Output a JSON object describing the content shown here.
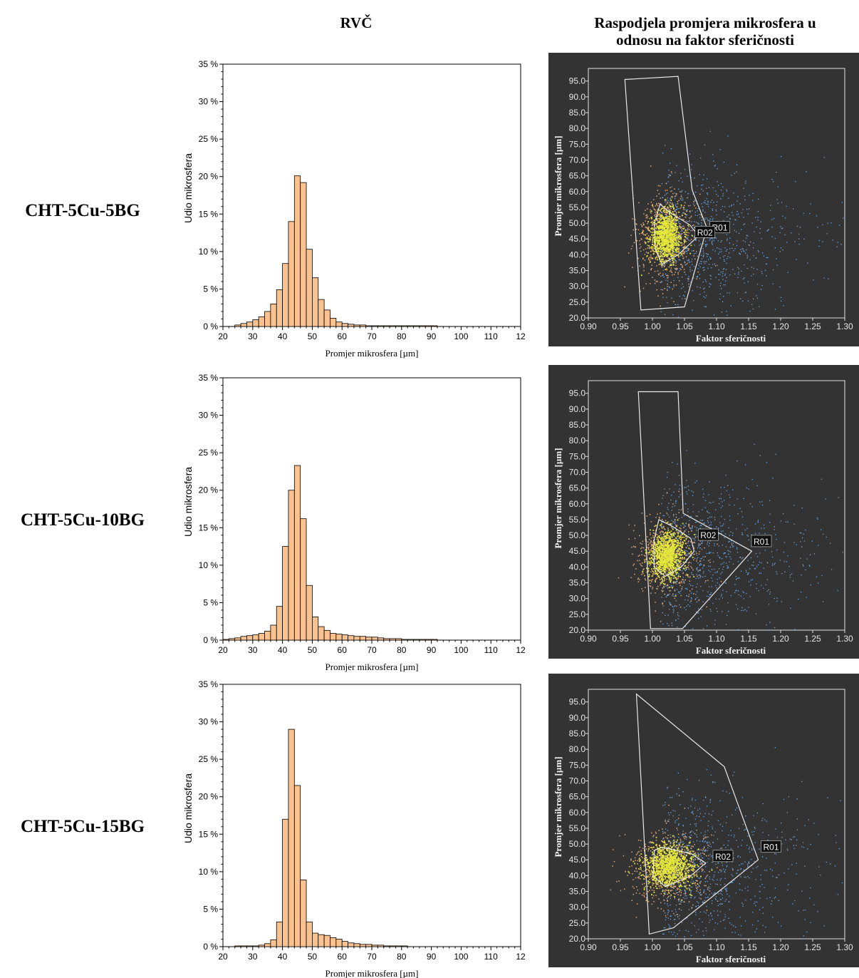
{
  "headers": {
    "left": "RVČ",
    "right_line1": "Raspodjela promjera mikrosfera u",
    "right_line2": "odnosu na faktor sferičnosti"
  },
  "colors": {
    "bar_fill": "#f9c28f",
    "bar_stroke": "#000000",
    "scatter_bg": "#333333",
    "scatter_grid": "#e0e0e0",
    "density_core": "#e4e83a",
    "density_mid": "#e0a878",
    "density_sparse": "#6fa7e6"
  },
  "rows": [
    {
      "label": "CHT-5Cu-5BG"
    },
    {
      "label": "CHT-5Cu-10BG"
    },
    {
      "label": "CHT-5Cu-15BG"
    }
  ],
  "chart_data": [
    {
      "type": "bar",
      "xlabel": "Promjer mikrosfera [µm]",
      "ylabel": "Udio mikrosfera",
      "xlim": [
        20,
        120
      ],
      "ylim": [
        0,
        35
      ],
      "xticks": [
        "20",
        "30",
        "40",
        "50",
        "60",
        "70",
        "80",
        "90",
        "100",
        "110",
        "12"
      ],
      "yticks": [
        "0 %",
        "5 %",
        "10 %",
        "15 %",
        "20 %",
        "25 %",
        "30 %",
        "35 %"
      ],
      "bin_width": 2,
      "bin_starts": [
        24,
        26,
        28,
        30,
        32,
        34,
        36,
        38,
        40,
        42,
        44,
        46,
        48,
        50,
        52,
        54,
        56,
        58,
        60,
        62,
        64,
        66,
        68,
        70,
        72,
        74,
        76,
        78,
        80,
        82,
        84,
        86,
        88,
        90
      ],
      "values": [
        0.2,
        0.4,
        0.6,
        0.9,
        1.3,
        2.0,
        3.0,
        4.9,
        8.4,
        14.0,
        20.1,
        19.2,
        10.3,
        6.5,
        3.6,
        2.2,
        1.1,
        0.6,
        0.4,
        0.3,
        0.2,
        0.2,
        0.1,
        0.1,
        0.1,
        0.1,
        0.1,
        0.1,
        0.1,
        0.1,
        0.1,
        0.1,
        0.1,
        0.1
      ]
    },
    {
      "type": "bar",
      "xlabel": "Promjer mikrosfera [µm]",
      "ylabel": "Udio mikrosfera",
      "xlim": [
        20,
        120
      ],
      "ylim": [
        0,
        35
      ],
      "xticks": [
        "20",
        "30",
        "40",
        "50",
        "60",
        "70",
        "80",
        "90",
        "100",
        "110",
        "12"
      ],
      "yticks": [
        "0 %",
        "5 %",
        "10 %",
        "15 %",
        "20 %",
        "25 %",
        "30 %",
        "35 %"
      ],
      "bin_width": 2,
      "bin_starts": [
        20,
        22,
        24,
        26,
        28,
        30,
        32,
        34,
        36,
        38,
        40,
        42,
        44,
        46,
        48,
        50,
        52,
        54,
        56,
        58,
        60,
        62,
        64,
        66,
        68,
        70,
        72,
        74,
        76,
        78,
        80,
        82,
        84,
        86,
        88,
        90
      ],
      "values": [
        0.1,
        0.2,
        0.3,
        0.5,
        0.6,
        0.7,
        0.9,
        1.2,
        2.0,
        4.5,
        12.5,
        20.0,
        23.3,
        16.2,
        7.3,
        3.1,
        1.8,
        1.3,
        0.9,
        0.8,
        0.7,
        0.6,
        0.5,
        0.5,
        0.4,
        0.4,
        0.3,
        0.2,
        0.2,
        0.2,
        0.1,
        0.1,
        0.1,
        0.1,
        0.1,
        0.1
      ]
    },
    {
      "type": "bar",
      "xlabel": "Promjer mikrosfera [µm]",
      "ylabel": "Udio mikrosfera",
      "xlim": [
        20,
        120
      ],
      "ylim": [
        0,
        35
      ],
      "xticks": [
        "20",
        "30",
        "40",
        "50",
        "60",
        "70",
        "80",
        "90",
        "100",
        "110",
        "12"
      ],
      "yticks": [
        "0 %",
        "5 %",
        "10 %",
        "15 %",
        "20 %",
        "25 %",
        "30 %",
        "35 %"
      ],
      "bin_width": 2,
      "bin_starts": [
        24,
        26,
        28,
        30,
        32,
        34,
        36,
        38,
        40,
        42,
        44,
        46,
        48,
        50,
        52,
        54,
        56,
        58,
        60,
        62,
        64,
        66,
        68,
        70,
        72,
        74,
        76,
        78,
        80
      ],
      "values": [
        0.1,
        0.1,
        0.1,
        0.1,
        0.2,
        0.4,
        0.9,
        3.3,
        17.0,
        29.0,
        21.5,
        8.9,
        3.3,
        1.8,
        1.6,
        1.5,
        1.2,
        1.0,
        0.7,
        0.5,
        0.4,
        0.3,
        0.3,
        0.2,
        0.2,
        0.1,
        0.1,
        0.1,
        0.1
      ]
    },
    {
      "type": "scatter",
      "xlabel": "Faktor sferičnosti",
      "ylabel": "Promjer mikrosfera [µm]",
      "xlim": [
        0.9,
        1.3
      ],
      "ylim": [
        20,
        99
      ],
      "xticks": [
        "0.90",
        "0.95",
        "1.00",
        "1.05",
        "1.10",
        "1.15",
        "1.20",
        "1.25",
        "1.30"
      ],
      "yticks": [
        "20.0",
        "25.0",
        "30.0",
        "35.0",
        "40.0",
        "45.0",
        "50.0",
        "55.0",
        "60.0",
        "65.0",
        "70.0",
        "75.0",
        "80.0",
        "85.0",
        "90.0",
        "95.0"
      ],
      "density_center": [
        1.02,
        46
      ],
      "density_spread": [
        0.012,
        4.0
      ],
      "regions": [
        {
          "name": "R01",
          "label_at": [
            1.105,
            48.5
          ],
          "polygon": [
            [
              0.957,
              95.5
            ],
            [
              1.04,
              96.5
            ],
            [
              1.062,
              60.5
            ],
            [
              1.085,
              48.5
            ],
            [
              1.05,
              23.5
            ],
            [
              0.982,
              22.5
            ]
          ]
        },
        {
          "name": "R02",
          "label_at": [
            1.082,
            47
          ],
          "polygon": [
            [
              1.012,
              56
            ],
            [
              1.03,
              53
            ],
            [
              1.058,
              49.5
            ],
            [
              1.072,
              46
            ],
            [
              1.04,
              40
            ],
            [
              1.015,
              37
            ],
            [
              1.004,
              42
            ],
            [
              1.003,
              50
            ]
          ]
        }
      ]
    },
    {
      "type": "scatter",
      "xlabel": "Faktor sferičnosti",
      "ylabel": "Promjer mikrosfera [µm]",
      "xlim": [
        0.9,
        1.3
      ],
      "ylim": [
        20,
        99
      ],
      "xticks": [
        "0.90",
        "0.95",
        "1.00",
        "1.05",
        "1.10",
        "1.15",
        "1.20",
        "1.25",
        "1.30"
      ],
      "yticks": [
        "20.0",
        "25.0",
        "30.0",
        "35.0",
        "40.0",
        "45.0",
        "50.0",
        "55.0",
        "60.0",
        "65.0",
        "70.0",
        "75.0",
        "80.0",
        "85.0",
        "90.0",
        "95.0"
      ],
      "density_center": [
        1.022,
        44
      ],
      "density_spread": [
        0.013,
        3.6
      ],
      "regions": [
        {
          "name": "R01",
          "label_at": [
            1.17,
            48
          ],
          "polygon": [
            [
              0.978,
              95.5
            ],
            [
              1.04,
              95.5
            ],
            [
              1.048,
              57
            ],
            [
              1.155,
              45
            ],
            [
              1.047,
              20.5
            ],
            [
              0.997,
              20.5
            ]
          ]
        },
        {
          "name": "R02",
          "label_at": [
            1.087,
            50
          ],
          "polygon": [
            [
              1.01,
              55
            ],
            [
              1.03,
              53
            ],
            [
              1.06,
              49
            ],
            [
              1.065,
              45
            ],
            [
              1.045,
              40
            ],
            [
              1.02,
              37
            ],
            [
              1.003,
              40
            ],
            [
              1.002,
              48
            ]
          ]
        }
      ]
    },
    {
      "type": "scatter",
      "xlabel": "Faktor sferičnosti",
      "ylabel": "Promjer mikrosfera [µm]",
      "xlim": [
        0.9,
        1.3
      ],
      "ylim": [
        20,
        99
      ],
      "xticks": [
        "0.90",
        "0.95",
        "1.00",
        "1.05",
        "1.10",
        "1.15",
        "1.20",
        "1.25",
        "1.30"
      ],
      "yticks": [
        "20.0",
        "25.0",
        "30.0",
        "35.0",
        "40.0",
        "45.0",
        "50.0",
        "55.0",
        "60.0",
        "65.0",
        "70.0",
        "75.0",
        "80.0",
        "85.0",
        "90.0",
        "95.0"
      ],
      "density_center": [
        1.025,
        43
      ],
      "density_spread": [
        0.018,
        3.4
      ],
      "regions": [
        {
          "name": "R01",
          "label_at": [
            1.185,
            49
          ],
          "polygon": [
            [
              0.975,
              97.5
            ],
            [
              1.112,
              74.5
            ],
            [
              1.165,
              45
            ],
            [
              1.033,
              23.5
            ],
            [
              0.995,
              21.5
            ]
          ]
        },
        {
          "name": "R02",
          "label_at": [
            1.11,
            46
          ],
          "polygon": [
            [
              1.003,
              48
            ],
            [
              1.015,
              49
            ],
            [
              1.06,
              47
            ],
            [
              1.083,
              44
            ],
            [
              1.06,
              40
            ],
            [
              1.02,
              36.5
            ],
            [
              1.001,
              40
            ]
          ]
        }
      ]
    }
  ]
}
